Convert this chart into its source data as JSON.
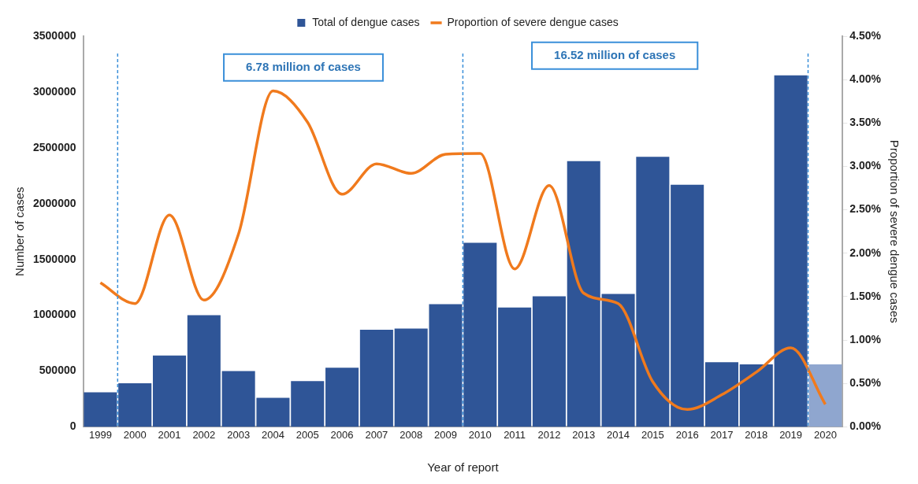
{
  "chart_data": {
    "type": "bar",
    "xlabel": "Year of report",
    "ylabel": "Number of cases",
    "y2label": "Proportion of severe dengue cases",
    "categories": [
      "1999",
      "2000",
      "2001",
      "2002",
      "2003",
      "2004",
      "2005",
      "2006",
      "2007",
      "2008",
      "2009",
      "2010",
      "2011",
      "2012",
      "2013",
      "2014",
      "2015",
      "2016",
      "2017",
      "2018",
      "2019",
      "2020"
    ],
    "series": [
      {
        "name": "Total of dengue cases",
        "colors": [
          "#2f5597",
          "#2f5597",
          "#2f5597",
          "#2f5597",
          "#2f5597",
          "#2f5597",
          "#2f5597",
          "#2f5597",
          "#2f5597",
          "#2f5597",
          "#2f5597",
          "#2f5597",
          "#2f5597",
          "#2f5597",
          "#2f5597",
          "#2f5597",
          "#2f5597",
          "#2f5597",
          "#2f5597",
          "#2f5597",
          "#2f5597",
          "#8fa6cf"
        ],
        "color": "#2f5597",
        "values": [
          310000,
          390000,
          640000,
          1000000,
          500000,
          260000,
          410000,
          530000,
          870000,
          880000,
          1100000,
          1650000,
          1070000,
          1170000,
          2380000,
          1190000,
          2420000,
          2170000,
          580000,
          560000,
          3150000,
          560000
        ]
      },
      {
        "name": "Proportion of severe dengue cases",
        "type": "line",
        "axis": "y2",
        "color": "#f07a1d",
        "values": [
          1.66,
          1.42,
          2.44,
          1.46,
          2.22,
          3.87,
          3.51,
          2.68,
          3.03,
          2.92,
          3.14,
          3.15,
          1.82,
          2.78,
          1.54,
          1.42,
          0.52,
          0.2,
          0.37,
          0.63,
          0.91,
          0.26
        ]
      }
    ],
    "ylim": [
      0,
      3500000
    ],
    "yticks": [
      0,
      500000,
      1000000,
      1500000,
      2000000,
      2500000,
      3000000,
      3500000
    ],
    "y2lim": [
      0,
      4.5
    ],
    "y2ticks": [
      {
        "value": 0,
        "label": "0.00%"
      },
      {
        "value": 0.5,
        "label": "0.50%"
      },
      {
        "value": 1,
        "label": "1.00%"
      },
      {
        "value": 1.5,
        "label": "1.50%"
      },
      {
        "value": 2,
        "label": "2.00%"
      },
      {
        "value": 2.5,
        "label": "2.50%"
      },
      {
        "value": 3,
        "label": "3.00%"
      },
      {
        "value": 3.5,
        "label": "3.50%"
      },
      {
        "value": 4,
        "label": "4.00%"
      },
      {
        "value": 4.5,
        "label": "4.50%"
      }
    ],
    "annotations": [
      "6.78 million of cases",
      "16.52 million of cases"
    ],
    "legend": "top",
    "grid": false,
    "marker": "none",
    "line_style": "solid"
  }
}
